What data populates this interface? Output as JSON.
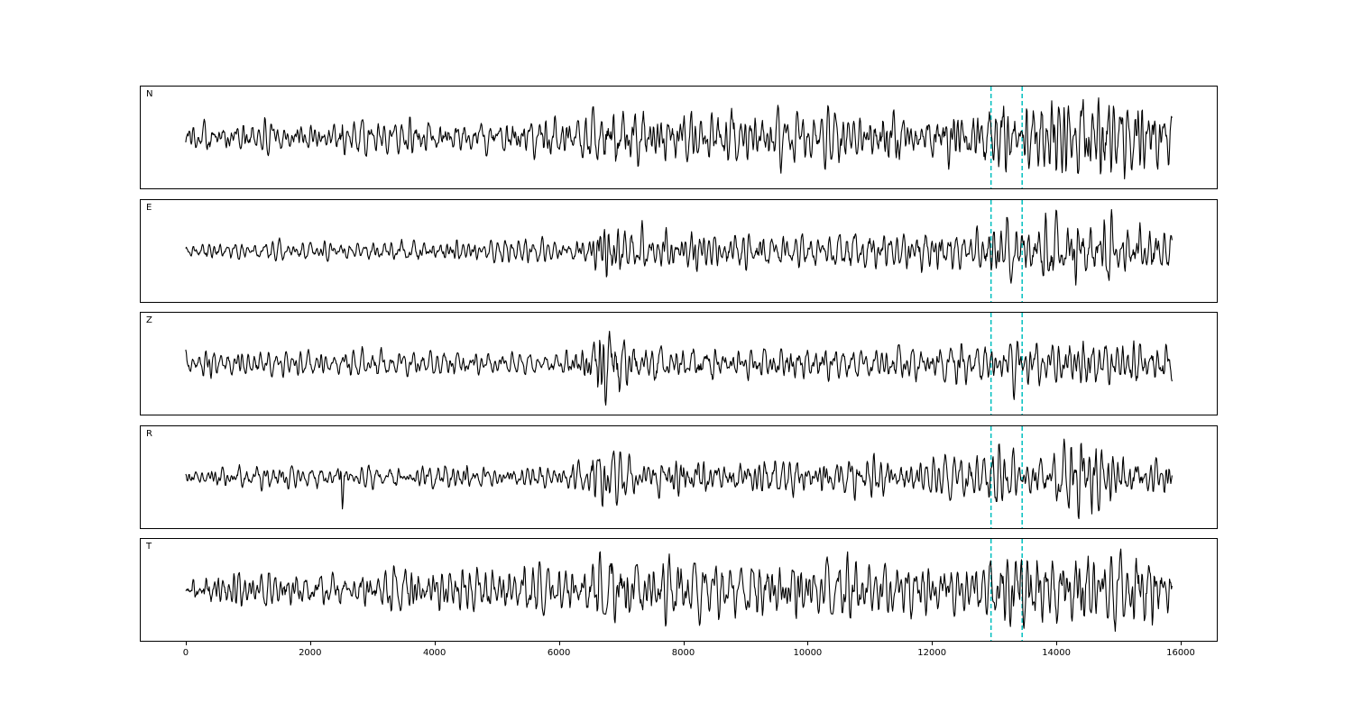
{
  "figure": {
    "background": "#ffffff",
    "trace_color": "#000000"
  },
  "chart_data": {
    "type": "line",
    "title": "",
    "xlabel": "",
    "ylabel": "",
    "grid": false,
    "legend": "none",
    "xlim": [
      -724,
      16580
    ],
    "xticks": [
      0,
      2000,
      4000,
      6000,
      8000,
      10000,
      12000,
      14000,
      16000
    ],
    "tick_labels": [
      "0",
      "2000",
      "4000",
      "6000",
      "8000",
      "10000",
      "12000",
      "14000",
      "16000"
    ],
    "panels": [
      "N",
      "E",
      "Z",
      "R",
      "T"
    ],
    "data_x_range": [
      0,
      15860
    ],
    "samples_per_trace": 1600,
    "vertical_markers": {
      "x": [
        12950,
        13450
      ],
      "color": "#00bfbf",
      "style": "dashed",
      "spans": "all-panels"
    },
    "series": [
      {
        "name": "N",
        "seed": 101,
        "gain": 46,
        "envelope": [
          [
            0,
            0.3
          ],
          [
            2440,
            0.32
          ],
          [
            2510,
            1.0
          ],
          [
            2580,
            0.32
          ],
          [
            4500,
            0.35
          ],
          [
            6300,
            0.45
          ],
          [
            6800,
            0.75
          ],
          [
            7400,
            0.5
          ],
          [
            9000,
            0.58
          ],
          [
            11000,
            0.5
          ],
          [
            12800,
            0.6
          ],
          [
            13400,
            0.85
          ],
          [
            14800,
            0.95
          ],
          [
            15860,
            0.7
          ]
        ]
      },
      {
        "name": "E",
        "seed": 202,
        "gain": 46,
        "envelope": [
          [
            0,
            0.22
          ],
          [
            2440,
            0.25
          ],
          [
            2510,
            0.55
          ],
          [
            2580,
            0.25
          ],
          [
            5000,
            0.28
          ],
          [
            6400,
            0.32
          ],
          [
            6650,
            1.0
          ],
          [
            7100,
            0.6
          ],
          [
            8000,
            0.52
          ],
          [
            10000,
            0.46
          ],
          [
            12800,
            0.6
          ],
          [
            13400,
            0.8
          ],
          [
            14800,
            1.0
          ],
          [
            15860,
            0.7
          ]
        ]
      },
      {
        "name": "Z",
        "seed": 303,
        "gain": 46,
        "envelope": [
          [
            0,
            0.3
          ],
          [
            4000,
            0.27
          ],
          [
            5500,
            0.25
          ],
          [
            6400,
            0.32
          ],
          [
            6650,
            1.0
          ],
          [
            6900,
            0.72
          ],
          [
            7400,
            0.45
          ],
          [
            9000,
            0.4
          ],
          [
            12000,
            0.35
          ],
          [
            13500,
            0.5
          ],
          [
            15000,
            0.55
          ],
          [
            15860,
            0.45
          ]
        ]
      },
      {
        "name": "R",
        "seed": 404,
        "gain": 46,
        "envelope": [
          [
            0,
            0.25
          ],
          [
            2440,
            0.28
          ],
          [
            2510,
            0.9
          ],
          [
            2580,
            0.28
          ],
          [
            5000,
            0.3
          ],
          [
            6400,
            0.35
          ],
          [
            6700,
            0.9
          ],
          [
            7200,
            0.5
          ],
          [
            9000,
            0.45
          ],
          [
            12800,
            0.5
          ],
          [
            13100,
            1.0
          ],
          [
            13600,
            0.5
          ],
          [
            14600,
            1.0
          ],
          [
            15100,
            0.6
          ],
          [
            15860,
            0.45
          ]
        ]
      },
      {
        "name": "T",
        "seed": 505,
        "gain": 46,
        "envelope": [
          [
            0,
            0.35
          ],
          [
            2400,
            0.45
          ],
          [
            2600,
            0.4
          ],
          [
            6400,
            0.5
          ],
          [
            6700,
            1.0
          ],
          [
            7300,
            0.6
          ],
          [
            9000,
            0.6
          ],
          [
            11000,
            0.55
          ],
          [
            12800,
            0.5
          ],
          [
            13400,
            0.85
          ],
          [
            14500,
            0.7
          ],
          [
            15500,
            0.8
          ],
          [
            15860,
            0.6
          ]
        ]
      }
    ],
    "note": "Five-component seismogram-style traces (band-limited noise). Envelope entries are [x, relative amplitude] breakpoints describing signal energy vs. sample index; two dashed cyan vertical marker lines cross all panels near x=12950 and x=13450."
  }
}
